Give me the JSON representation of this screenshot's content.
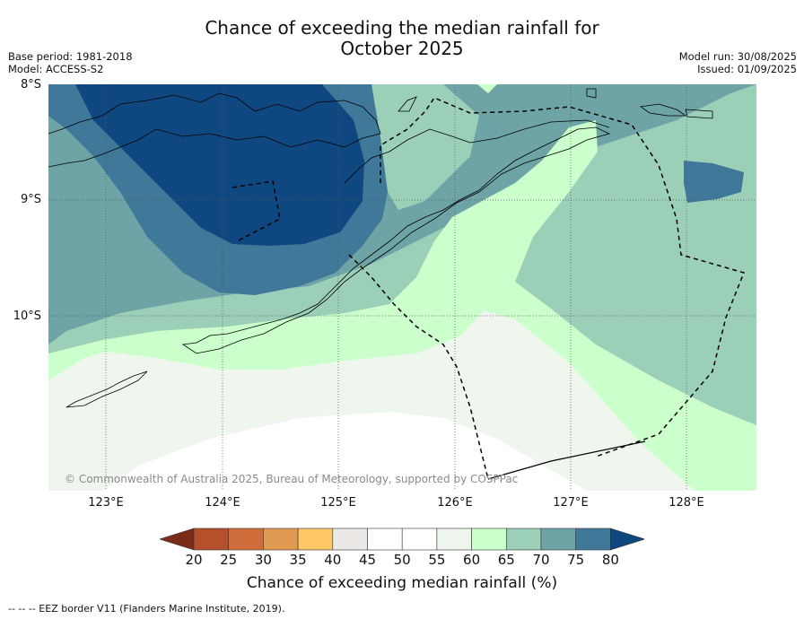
{
  "title_line1": "Chance of exceeding the median rainfall for",
  "title_line2": "October 2025",
  "meta_left": [
    "Base period: 1981-2018",
    "Model: ACCESS-S2"
  ],
  "meta_right": [
    "Model run: 30/08/2025",
    "Issued: 01/09/2025"
  ],
  "lat_labels": [
    "8°S",
    "9°S",
    "10°S"
  ],
  "lon_labels": [
    "123°E",
    "124°E",
    "125°E",
    "126°E",
    "127°E",
    "128°E"
  ],
  "copyright": "© Commonwealth of Australia 2025, Bureau of Meteorology, supported by COSPPac",
  "colorbar": {
    "title": "Chance of exceeding median rainfall (%)",
    "ticks": [
      "20",
      "25",
      "30",
      "35",
      "40",
      "45",
      "50",
      "55",
      "60",
      "65",
      "70",
      "75",
      "80"
    ],
    "colors": [
      "#7a2b1a",
      "#b4502c",
      "#cf6e3a",
      "#e19a52",
      "#fdc766",
      "#ebe9e6",
      "#ffffff",
      "#ffffff",
      "#eef6ee",
      "#cbffcb",
      "#9ccfb8",
      "#6ea4a6",
      "#3f7898",
      "#0f4880"
    ]
  },
  "footnote": "--  --  -- EEZ border V11 (Flanders Marine Institute, 2019).",
  "map": {
    "lon_range": [
      122.5,
      128.6
    ],
    "lat_range": [
      -8.0,
      -11.5
    ],
    "gridlines": true
  }
}
